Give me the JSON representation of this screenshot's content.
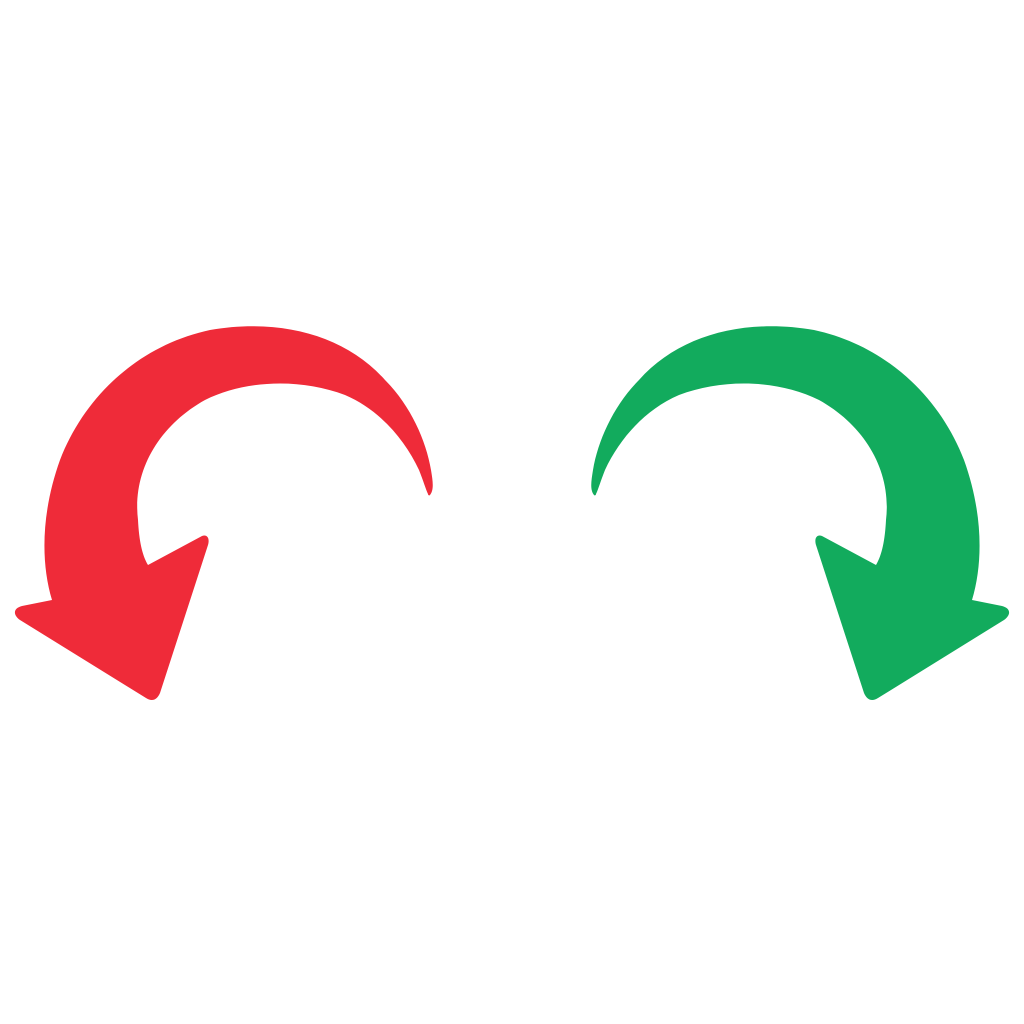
{
  "arrows": [
    {
      "id": "left",
      "icon": "curved-arrow-counterclockwise-icon",
      "direction": "counterclockwise",
      "color": "#EF2B39"
    },
    {
      "id": "right",
      "icon": "curved-arrow-clockwise-icon",
      "direction": "clockwise",
      "color": "#12AB5D"
    }
  ]
}
